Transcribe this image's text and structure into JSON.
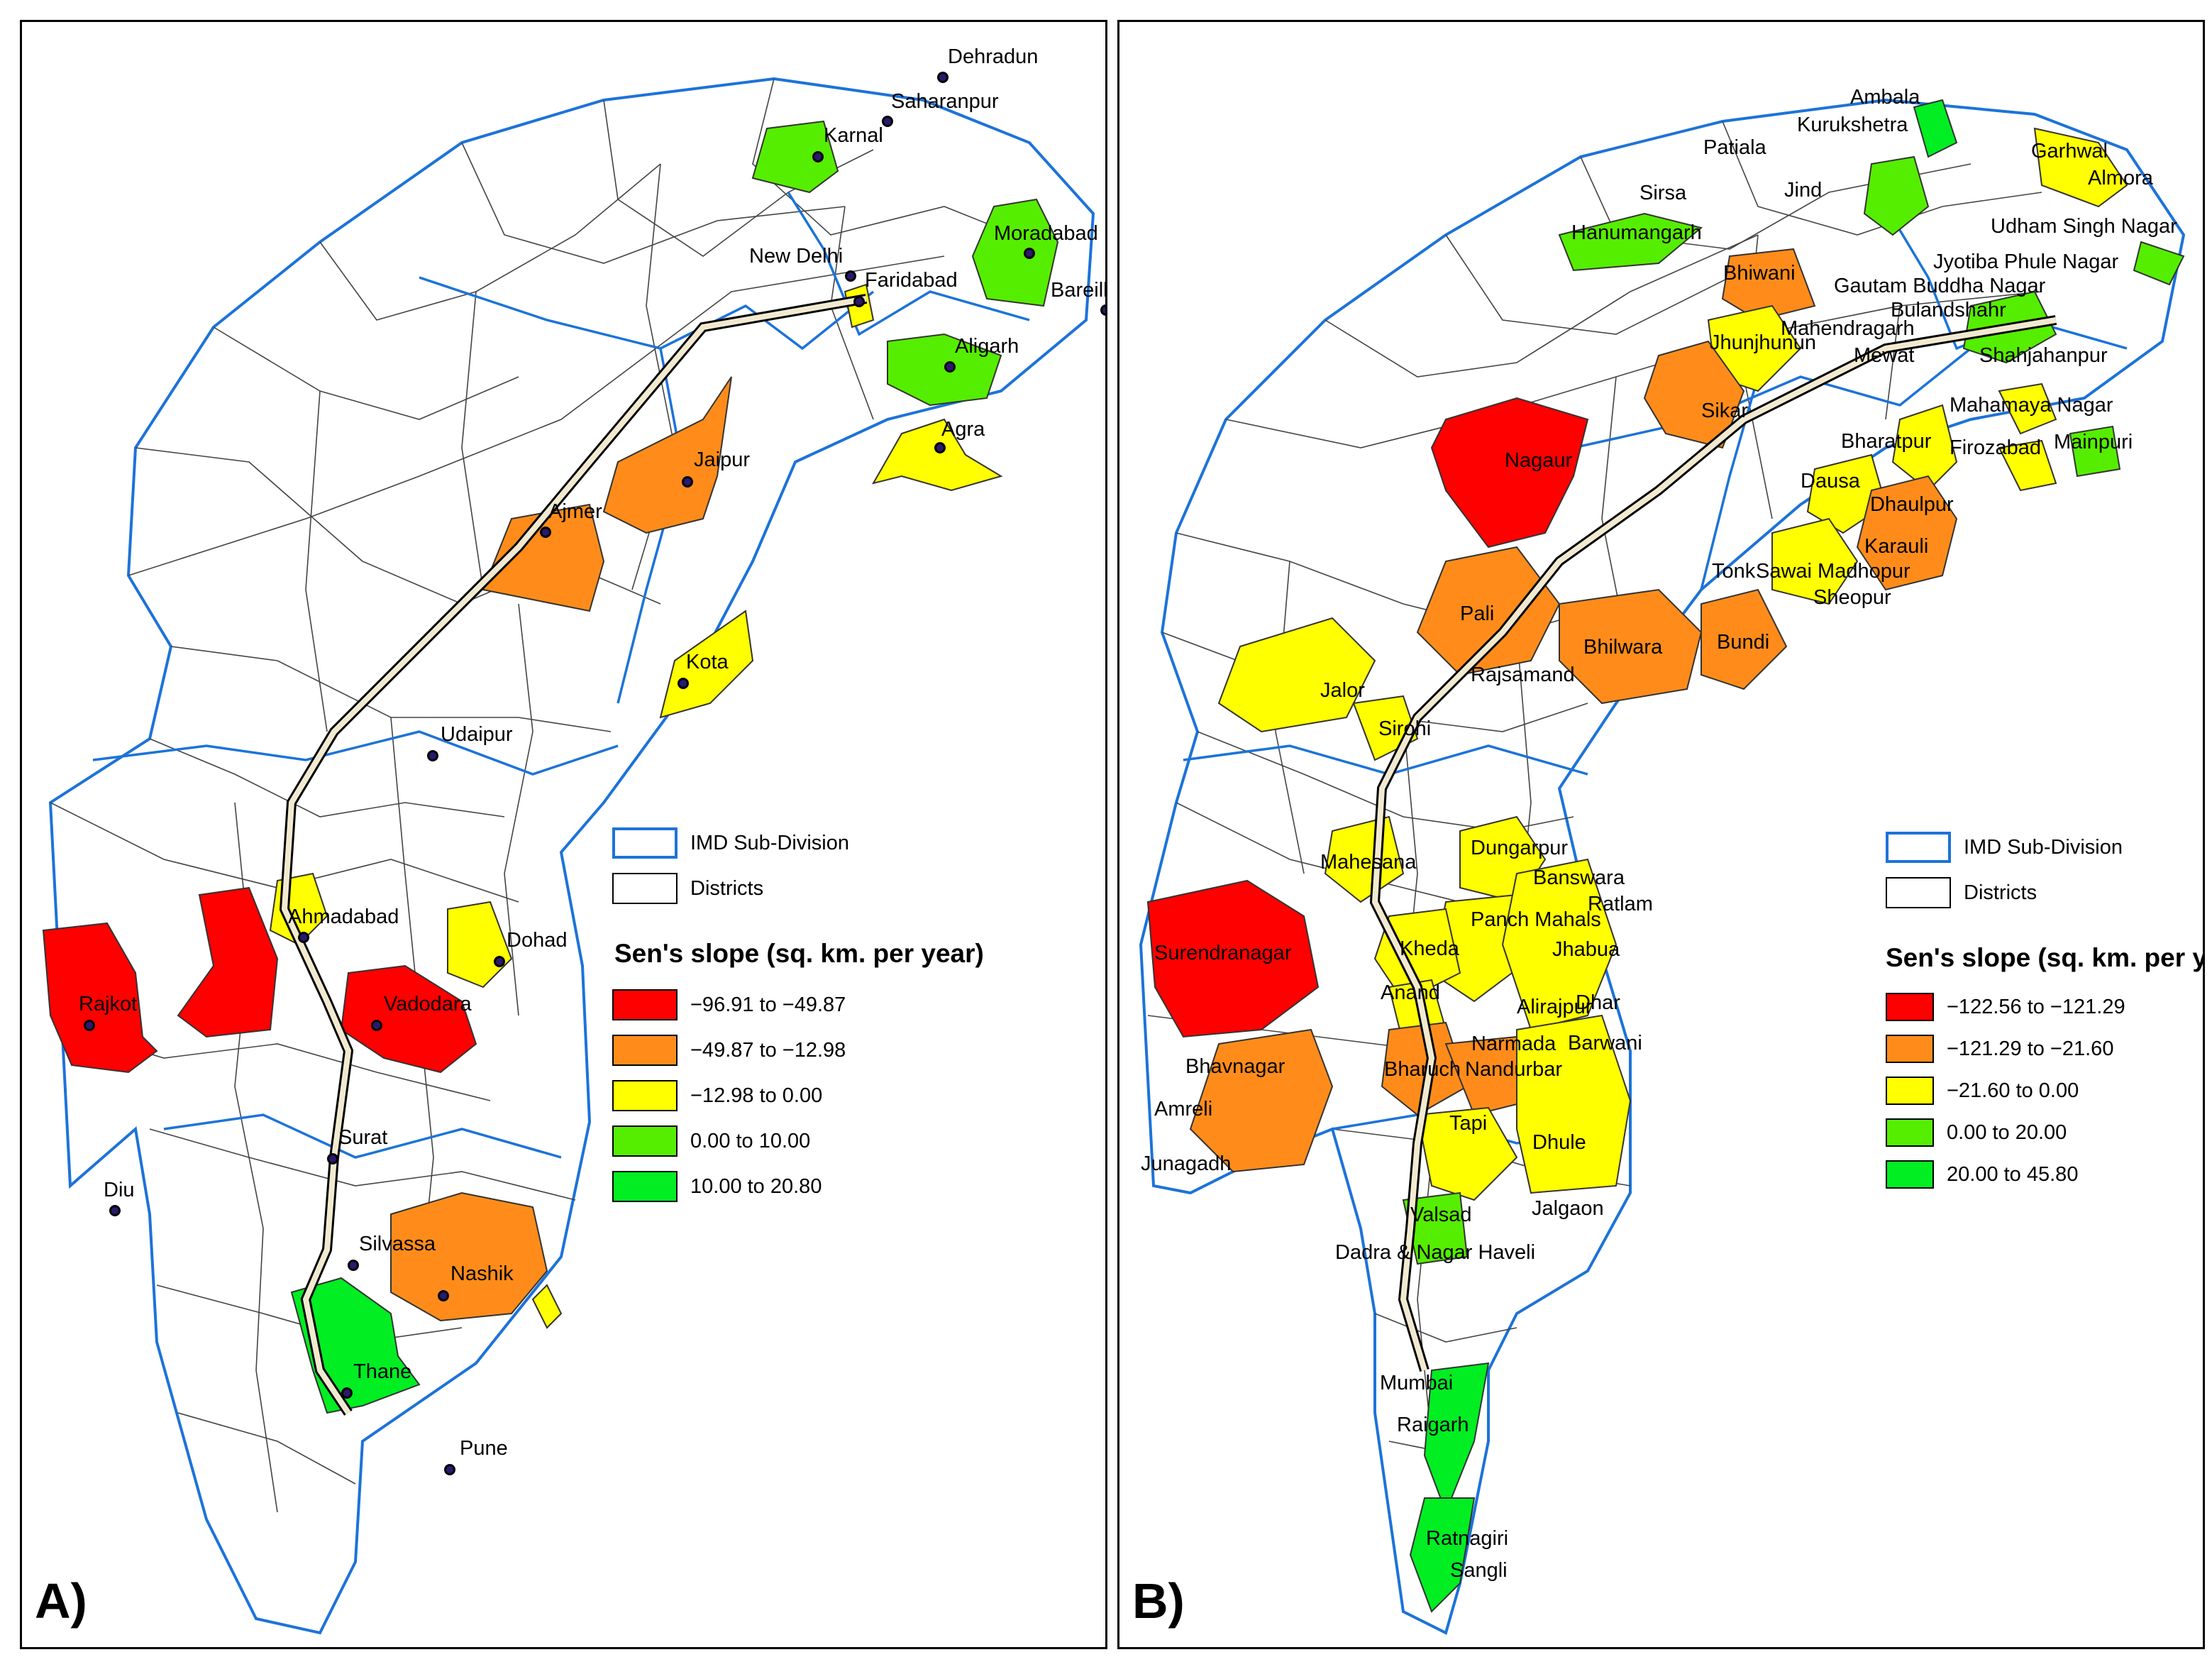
{
  "colors": {
    "class1": "#ff0000",
    "class2": "#ff8c1a",
    "class3": "#ffff00",
    "class4": "#55ee00",
    "class5": "#00ee22",
    "imd_border": "#1c73d9",
    "district_border": "#333333",
    "city_dot": "#2a1a6e",
    "corridor": "#f2ead0"
  },
  "panel_a": {
    "letter": "A)",
    "cities": [
      "Dehradun",
      "Saharanpur",
      "Karnal",
      "Moradabad",
      "New Delhi",
      "Faridabad",
      "Bareilly",
      "Aligarh",
      "Agra",
      "Jaipur",
      "Ajmer",
      "Kota",
      "Udaipur",
      "Ahmadabad",
      "Dohad",
      "Rajkot",
      "Vadodara",
      "Surat",
      "Diu",
      "Silvassa",
      "Nashik",
      "Thane",
      "Pune"
    ],
    "legend": {
      "imd_label": "IMD Sub-Division",
      "district_label": "Districts",
      "title": "Sen's slope (sq. km. per year)",
      "classes": [
        "−96.91 to −49.87",
        "−49.87 to −12.98",
        "−12.98 to 0.00",
        "0.00 to 10.00",
        "10.00 to 20.80"
      ]
    }
  },
  "panel_b": {
    "letter": "B)",
    "districts": [
      "Ambala",
      "Kurukshetra",
      "Patiala",
      "Garhwal",
      "Almora",
      "Sirsa",
      "Jind",
      "Hanumangarh",
      "Udham Singh Nagar",
      "Bhiwani",
      "Jyotiba Phule Nagar",
      "Gautam Buddha Nagar",
      "Bulandshahr",
      "Jhunjhunun",
      "Mahendragarh",
      "Mewat",
      "Shahjahanpur",
      "Sikar",
      "Mahamaya Nagar",
      "Nagaur",
      "Bharatpur",
      "Firozabad",
      "Mainpuri",
      "Dausa",
      "Dhaulpur",
      "Karauli",
      "Tonk",
      "Sawai Madhopur",
      "Sheopur",
      "Pali",
      "Bhilwara",
      "Bundi",
      "Rajsamand",
      "Jalor",
      "Sirohi",
      "Dungarpur",
      "Banswara",
      "Ratlam",
      "Mahesana",
      "Panch Mahals",
      "Jhabua",
      "Kheda",
      "Surendranagar",
      "Anand",
      "Alirajpur",
      "Dhar",
      "Barwani",
      "Narmada",
      "Bhavnagar",
      "Bharuch",
      "Nandurbar",
      "Amreli",
      "Tapi",
      "Dhule",
      "Junagadh",
      "Jalgaon",
      "Valsad",
      "Dadra & Nagar Haveli",
      "Mumbai",
      "Raigarh",
      "Ratnagiri",
      "Sangli"
    ],
    "legend": {
      "imd_label": "IMD Sub-Division",
      "district_label": "Districts",
      "title": "Sen's slope (sq. km. per year)",
      "classes": [
        "−122.56 to −121.29",
        "−121.29 to −21.60",
        "−21.60 to 0.00",
        "0.00 to 20.00",
        "20.00 to 45.80"
      ]
    }
  }
}
